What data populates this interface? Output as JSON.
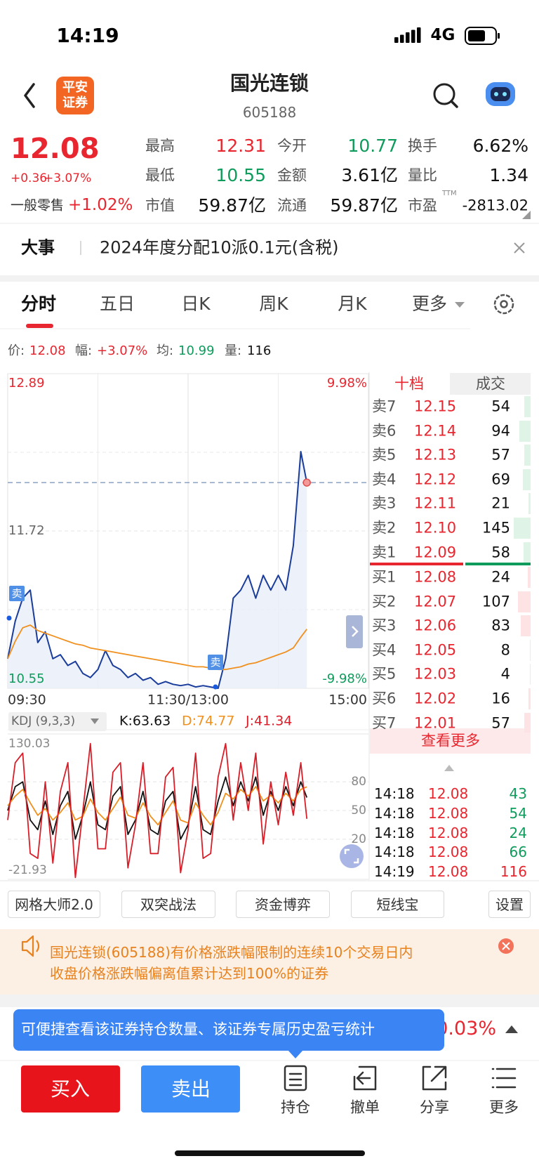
{
  "status_bar": {
    "time": "14:19",
    "network": "4G"
  },
  "header": {
    "logo": [
      "平安",
      "证券"
    ],
    "title": "国光连锁",
    "code": "605188"
  },
  "quote": {
    "price": "12.08",
    "change": "+0.36",
    "change_pct": "+3.07%",
    "sector": "一般零售",
    "sector_pct": "+1.02%",
    "stats": [
      {
        "label": "最高",
        "value": "12.31"
      },
      {
        "label": "今开",
        "value": "10.77"
      },
      {
        "label": "换手",
        "value": "6.62%"
      },
      {
        "label": "最低",
        "value": "10.55"
      },
      {
        "label": "金额",
        "value": "3.61亿"
      },
      {
        "label": "量比",
        "value": "1.34"
      },
      {
        "label": "市值",
        "value": "59.87亿"
      },
      {
        "label": "流通",
        "value": "59.87亿"
      },
      {
        "label": "市盈",
        "value": "-2813.02"
      }
    ],
    "pe_suffix": "TTM"
  },
  "notice": {
    "tag": "大事",
    "text": "2024年度分配10派0.1元(含税)"
  },
  "tabs": [
    "分时",
    "五日",
    "日K",
    "周K",
    "月K",
    "更多"
  ],
  "summary": [
    {
      "label": "价:",
      "value": "12.08"
    },
    {
      "label": "幅:",
      "value": "+3.07%"
    },
    {
      "label": "均:",
      "value": "10.99"
    },
    {
      "label": "量:",
      "value": "116"
    }
  ],
  "chart_data": [
    {
      "type": "line",
      "x": [
        0,
        5,
        10,
        15,
        20,
        25,
        30,
        35,
        40,
        45,
        50,
        55,
        60,
        65,
        70,
        75,
        80,
        85,
        90,
        95,
        100,
        105,
        110,
        115,
        120,
        125,
        130,
        135,
        140,
        145,
        150,
        155,
        160,
        165,
        170,
        175,
        180,
        185,
        190,
        195,
        199
      ],
      "xlim": [
        0,
        240
      ],
      "xticks": [
        {
          "value": 0,
          "label": "09:30"
        },
        {
          "value": 120,
          "label": "11:30/13:00"
        },
        {
          "value": 240,
          "label": "15:00"
        }
      ],
      "ylim": [
        10.55,
        12.89
      ],
      "yticks": [
        12.89,
        11.72,
        10.55
      ],
      "y2lim": [
        -9.98,
        9.98
      ],
      "y2ticks": [
        {
          "value": 9.98,
          "label": "9.98%"
        },
        {
          "value": -9.98,
          "label": "-9.98%"
        }
      ],
      "series": [
        {
          "color": "#1a3d9c",
          "values": [
            10.77,
            11.05,
            11.22,
            11.28,
            10.89,
            10.97,
            10.77,
            10.8,
            10.72,
            10.75,
            10.66,
            10.63,
            10.69,
            10.83,
            10.72,
            10.69,
            10.63,
            10.66,
            10.61,
            10.63,
            10.58,
            10.6,
            10.58,
            10.57,
            10.58,
            10.56,
            10.57,
            10.56,
            10.55,
            10.77,
            11.22,
            11.28,
            11.39,
            11.22,
            11.39,
            11.28,
            11.39,
            11.28,
            11.61,
            12.31,
            12.08
          ]
        },
        {
          "color": "#f0901e",
          "values": [
            10.77,
            10.9,
            11.0,
            11.02,
            10.98,
            10.96,
            10.94,
            10.92,
            10.9,
            10.88,
            10.87,
            10.85,
            10.84,
            10.83,
            10.82,
            10.81,
            10.8,
            10.79,
            10.78,
            10.77,
            10.76,
            10.75,
            10.74,
            10.73,
            10.72,
            10.71,
            10.71,
            10.7,
            10.69,
            10.69,
            10.7,
            10.71,
            10.73,
            10.74,
            10.76,
            10.78,
            10.8,
            10.82,
            10.85,
            10.93,
            10.99
          ]
        }
      ],
      "annotations": [
        "卖",
        "卖"
      ]
    },
    {
      "type": "line",
      "indicator": "KDJ (9,3,3)",
      "x": [
        0,
        5,
        10,
        15,
        20,
        25,
        30,
        35,
        40,
        45,
        50,
        55,
        60,
        65,
        70,
        75,
        80,
        85,
        90,
        95,
        100,
        105,
        110,
        115,
        120,
        125,
        130,
        135,
        140,
        145,
        150,
        155,
        160,
        165,
        170,
        175,
        180,
        185,
        190,
        195,
        199
      ],
      "xlim": [
        0,
        240
      ],
      "ylim": [
        -21.93,
        130.03
      ],
      "yticks": [
        130.03,
        80,
        50,
        20,
        -21.93
      ],
      "series": [
        {
          "name": "K:63.63",
          "color": "#111111",
          "values": [
            50,
            75,
            80,
            40,
            30,
            60,
            25,
            55,
            70,
            20,
            45,
            80,
            35,
            30,
            65,
            75,
            25,
            40,
            70,
            30,
            25,
            60,
            70,
            20,
            35,
            75,
            30,
            25,
            60,
            85,
            55,
            80,
            60,
            85,
            45,
            70,
            50,
            75,
            55,
            80,
            63.63
          ]
        },
        {
          "name": "D:74.77",
          "color": "#f0901e",
          "values": [
            55,
            65,
            72,
            58,
            45,
            52,
            40,
            48,
            58,
            40,
            44,
            62,
            48,
            40,
            52,
            64,
            45,
            42,
            58,
            44,
            35,
            48,
            60,
            40,
            37,
            58,
            45,
            35,
            48,
            68,
            62,
            72,
            65,
            75,
            60,
            66,
            58,
            68,
            60,
            72,
            74.77
          ]
        },
        {
          "name": "J:41.34",
          "color": "#d81e28",
          "values": [
            40,
            100,
            110,
            5,
            0,
            80,
            -5,
            70,
            100,
            -20,
            50,
            120,
            10,
            10,
            90,
            100,
            -10,
            35,
            100,
            5,
            5,
            85,
            95,
            -15,
            30,
            110,
            0,
            5,
            85,
            120,
            40,
            100,
            50,
            110,
            15,
            80,
            35,
            90,
            45,
            100,
            41.34
          ]
        }
      ]
    }
  ],
  "order_book": {
    "tabs": [
      "十档",
      "成交"
    ],
    "asks": [
      {
        "label": "卖7",
        "price": "12.15",
        "volume": 54
      },
      {
        "label": "卖6",
        "price": "12.14",
        "volume": 94
      },
      {
        "label": "卖5",
        "price": "12.13",
        "volume": 57
      },
      {
        "label": "卖4",
        "price": "12.12",
        "volume": 69
      },
      {
        "label": "卖3",
        "price": "12.11",
        "volume": 21
      },
      {
        "label": "卖2",
        "price": "12.10",
        "volume": 145
      },
      {
        "label": "卖1",
        "price": "12.09",
        "volume": 58
      }
    ],
    "bids": [
      {
        "label": "买1",
        "price": "12.08",
        "volume": 24
      },
      {
        "label": "买2",
        "price": "12.07",
        "volume": 107
      },
      {
        "label": "买3",
        "price": "12.06",
        "volume": 83
      },
      {
        "label": "买4",
        "price": "12.05",
        "volume": 8
      },
      {
        "label": "买5",
        "price": "12.03",
        "volume": 4
      },
      {
        "label": "买6",
        "price": "12.02",
        "volume": 16
      },
      {
        "label": "买7",
        "price": "12.01",
        "volume": 57
      }
    ],
    "more": "查看更多",
    "trades": [
      {
        "time": "14:18",
        "price": "12.08",
        "volume": 43,
        "color": "#0f9b5c"
      },
      {
        "time": "14:18",
        "price": "12.08",
        "volume": 54,
        "color": "#0f9b5c"
      },
      {
        "time": "14:18",
        "price": "12.08",
        "volume": 24,
        "color": "#0f9b5c"
      },
      {
        "time": "14:18",
        "price": "12.08",
        "volume": 66,
        "color": "#0f9b5c"
      },
      {
        "time": "14:19",
        "price": "12.08",
        "volume": 116,
        "color": "#e8262f"
      }
    ]
  },
  "tools": [
    "网格大师2.0",
    "双突战法",
    "资金博弈",
    "短线宝",
    "设置"
  ],
  "alert": {
    "lines": [
      "国光连锁(605188)有价格涨跌幅限制的连续10个交易日内",
      "收盘价格涨跌幅偏离值累计达到100%的证券"
    ]
  },
  "position_row": {
    "value": "0.03%",
    "tooltip": "可便捷查看该证券持仓数量、该证券专属历史盈亏统计"
  },
  "bottom_bar": {
    "buy": "买入",
    "sell": "卖出",
    "actions": [
      "持仓",
      "撤单",
      "分享",
      "更多"
    ]
  }
}
